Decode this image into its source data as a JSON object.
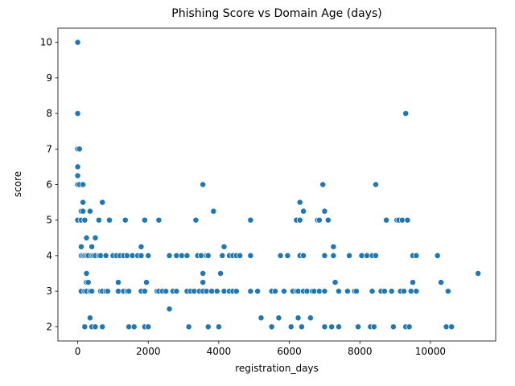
{
  "chart_data": {
    "type": "scatter",
    "title": "Phishing Score vs Domain Age (days)",
    "xlabel": "registration_days",
    "ylabel": "score",
    "xlim": [
      -560,
      11850
    ],
    "ylim": [
      1.6,
      10.4
    ],
    "xticks": [
      0,
      2000,
      4000,
      6000,
      8000,
      10000
    ],
    "yticks": [
      2,
      3,
      4,
      5,
      6,
      7,
      8,
      9,
      10
    ],
    "grid": false,
    "legend": "none",
    "marker_color": "#1f77b4",
    "points": [
      [
        0,
        10
      ],
      [
        0,
        8
      ],
      [
        0,
        7
      ],
      [
        0,
        6.5
      ],
      [
        0,
        6.25
      ],
      [
        0,
        6
      ],
      [
        0,
        5
      ],
      [
        50,
        7
      ],
      [
        50,
        6
      ],
      [
        100,
        5.25
      ],
      [
        100,
        5
      ],
      [
        100,
        4.25
      ],
      [
        100,
        4
      ],
      [
        100,
        3
      ],
      [
        150,
        5.5
      ],
      [
        150,
        5.25
      ],
      [
        150,
        6
      ],
      [
        150,
        4
      ],
      [
        200,
        5
      ],
      [
        200,
        4
      ],
      [
        200,
        3
      ],
      [
        200,
        2
      ],
      [
        250,
        4.5
      ],
      [
        250,
        4
      ],
      [
        250,
        3.5
      ],
      [
        250,
        3.25
      ],
      [
        250,
        3
      ],
      [
        300,
        3.25
      ],
      [
        300,
        4
      ],
      [
        350,
        3
      ],
      [
        350,
        2.25
      ],
      [
        350,
        5.25
      ],
      [
        400,
        4.25
      ],
      [
        400,
        4
      ],
      [
        400,
        3
      ],
      [
        400,
        2
      ],
      [
        450,
        4
      ],
      [
        500,
        4.5
      ],
      [
        500,
        4
      ],
      [
        500,
        2
      ],
      [
        600,
        5
      ],
      [
        600,
        4
      ],
      [
        650,
        4
      ],
      [
        650,
        3
      ],
      [
        700,
        3
      ],
      [
        700,
        2
      ],
      [
        700,
        5.5
      ],
      [
        800,
        4
      ],
      [
        800,
        3
      ],
      [
        850,
        3
      ],
      [
        900,
        5
      ],
      [
        1000,
        4
      ],
      [
        1100,
        4
      ],
      [
        1150,
        3.25
      ],
      [
        1150,
        3
      ],
      [
        1200,
        4
      ],
      [
        1300,
        4
      ],
      [
        1300,
        3
      ],
      [
        1350,
        5
      ],
      [
        1400,
        3
      ],
      [
        1400,
        4
      ],
      [
        1450,
        3
      ],
      [
        1450,
        2
      ],
      [
        1550,
        4
      ],
      [
        1600,
        2
      ],
      [
        1700,
        4
      ],
      [
        1800,
        4.25
      ],
      [
        1800,
        4
      ],
      [
        1800,
        3
      ],
      [
        1900,
        3
      ],
      [
        1900,
        2
      ],
      [
        1900,
        5
      ],
      [
        1950,
        3.25
      ],
      [
        2000,
        4
      ],
      [
        2000,
        2
      ],
      [
        2250,
        3
      ],
      [
        2300,
        5
      ],
      [
        2300,
        3
      ],
      [
        2400,
        3
      ],
      [
        2500,
        3
      ],
      [
        2600,
        4
      ],
      [
        2600,
        2.5
      ],
      [
        2700,
        3
      ],
      [
        2800,
        4
      ],
      [
        2800,
        3
      ],
      [
        2950,
        4
      ],
      [
        3100,
        4
      ],
      [
        3100,
        3
      ],
      [
        3150,
        2
      ],
      [
        3200,
        3
      ],
      [
        3300,
        3
      ],
      [
        3350,
        5
      ],
      [
        3400,
        4
      ],
      [
        3450,
        3
      ],
      [
        3500,
        4
      ],
      [
        3550,
        6
      ],
      [
        3550,
        3.5
      ],
      [
        3550,
        3.25
      ],
      [
        3550,
        3
      ],
      [
        3650,
        4
      ],
      [
        3650,
        3
      ],
      [
        3700,
        4
      ],
      [
        3700,
        2
      ],
      [
        3800,
        3
      ],
      [
        3850,
        5.25
      ],
      [
        3950,
        3
      ],
      [
        4000,
        2
      ],
      [
        4050,
        3.5
      ],
      [
        4100,
        4
      ],
      [
        4150,
        4.25
      ],
      [
        4150,
        3
      ],
      [
        4300,
        4
      ],
      [
        4300,
        3
      ],
      [
        4400,
        3
      ],
      [
        4400,
        4
      ],
      [
        4500,
        4
      ],
      [
        4500,
        3
      ],
      [
        4600,
        4
      ],
      [
        4900,
        5
      ],
      [
        4900,
        4
      ],
      [
        4900,
        3
      ],
      [
        5100,
        3
      ],
      [
        5200,
        2.25
      ],
      [
        5500,
        2
      ],
      [
        5500,
        3
      ],
      [
        5600,
        3
      ],
      [
        5700,
        2.25
      ],
      [
        5750,
        4
      ],
      [
        5850,
        3
      ],
      [
        5950,
        4
      ],
      [
        6050,
        2
      ],
      [
        6100,
        3
      ],
      [
        6200,
        5
      ],
      [
        6200,
        3
      ],
      [
        6250,
        2.25
      ],
      [
        6250,
        3
      ],
      [
        6300,
        5.5
      ],
      [
        6300,
        5
      ],
      [
        6300,
        4
      ],
      [
        6350,
        2
      ],
      [
        6400,
        5.25
      ],
      [
        6400,
        4
      ],
      [
        6400,
        3
      ],
      [
        6500,
        3
      ],
      [
        6600,
        2.25
      ],
      [
        6650,
        3
      ],
      [
        6700,
        3
      ],
      [
        6800,
        5
      ],
      [
        6850,
        5
      ],
      [
        6850,
        3
      ],
      [
        6950,
        6
      ],
      [
        7000,
        5.25
      ],
      [
        7000,
        4
      ],
      [
        7000,
        3
      ],
      [
        7000,
        2
      ],
      [
        7100,
        5
      ],
      [
        7200,
        2
      ],
      [
        7250,
        4.25
      ],
      [
        7250,
        4
      ],
      [
        7300,
        3.25
      ],
      [
        7400,
        3
      ],
      [
        7400,
        2
      ],
      [
        7650,
        3
      ],
      [
        7700,
        4
      ],
      [
        7850,
        3
      ],
      [
        7900,
        3
      ],
      [
        7950,
        2
      ],
      [
        8050,
        4
      ],
      [
        8200,
        4
      ],
      [
        8300,
        2
      ],
      [
        8350,
        4
      ],
      [
        8350,
        3
      ],
      [
        8400,
        2
      ],
      [
        8450,
        6
      ],
      [
        8450,
        4
      ],
      [
        8600,
        3
      ],
      [
        8700,
        3
      ],
      [
        8750,
        5
      ],
      [
        8900,
        3
      ],
      [
        8950,
        2
      ],
      [
        9050,
        5
      ],
      [
        9100,
        5
      ],
      [
        9150,
        3
      ],
      [
        9200,
        5
      ],
      [
        9250,
        3
      ],
      [
        9300,
        8
      ],
      [
        9300,
        2
      ],
      [
        9350,
        5
      ],
      [
        9400,
        2
      ],
      [
        9450,
        3
      ],
      [
        9500,
        4
      ],
      [
        9500,
        3.25
      ],
      [
        9600,
        4
      ],
      [
        9600,
        3
      ],
      [
        10200,
        4
      ],
      [
        10300,
        3.25
      ],
      [
        10450,
        2
      ],
      [
        10500,
        3
      ],
      [
        10600,
        2
      ],
      [
        11350,
        3.5
      ]
    ]
  }
}
